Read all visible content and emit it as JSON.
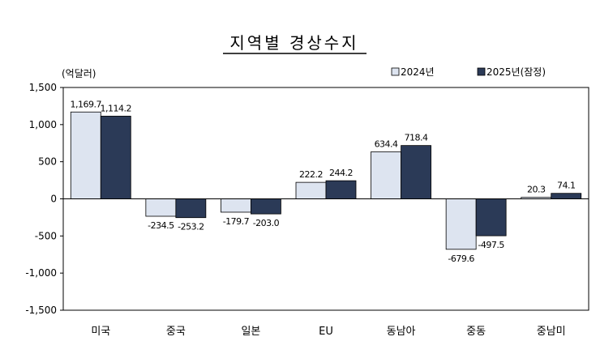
{
  "chart_data": {
    "type": "bar",
    "title": "지역별 경상수지",
    "ylabel": "(억달러)",
    "ylim": [
      -1500,
      1500
    ],
    "yticks": [
      "1,500",
      "1,000",
      "500",
      "0",
      "-500",
      "-1,000",
      "-1,500"
    ],
    "ytick_values": [
      1500,
      1000,
      500,
      0,
      -500,
      -1000,
      -1500
    ],
    "categories": [
      "미국",
      "중국",
      "일본",
      "EU",
      "동남아",
      "중동",
      "중남미"
    ],
    "series": [
      {
        "name": "2024년",
        "color": "#dde4f0",
        "values": [
          1169.7,
          -234.5,
          -179.7,
          222.2,
          634.4,
          -679.6,
          20.3
        ],
        "labels": [
          "1,169.7",
          "-234.5",
          "-179.7",
          "222.2",
          "634.4",
          "-679.6",
          "20.3"
        ]
      },
      {
        "name": "2025년(잠정)",
        "color": "#2b3a57",
        "values": [
          1114.2,
          -253.2,
          -203.0,
          244.2,
          718.4,
          -497.5,
          74.1
        ],
        "labels": [
          "1,114.2",
          "-253.2",
          "-203.0",
          "244.2",
          "718.4",
          "-497.5",
          "74.1"
        ]
      }
    ],
    "grid": false,
    "legend_position": "top-right"
  }
}
